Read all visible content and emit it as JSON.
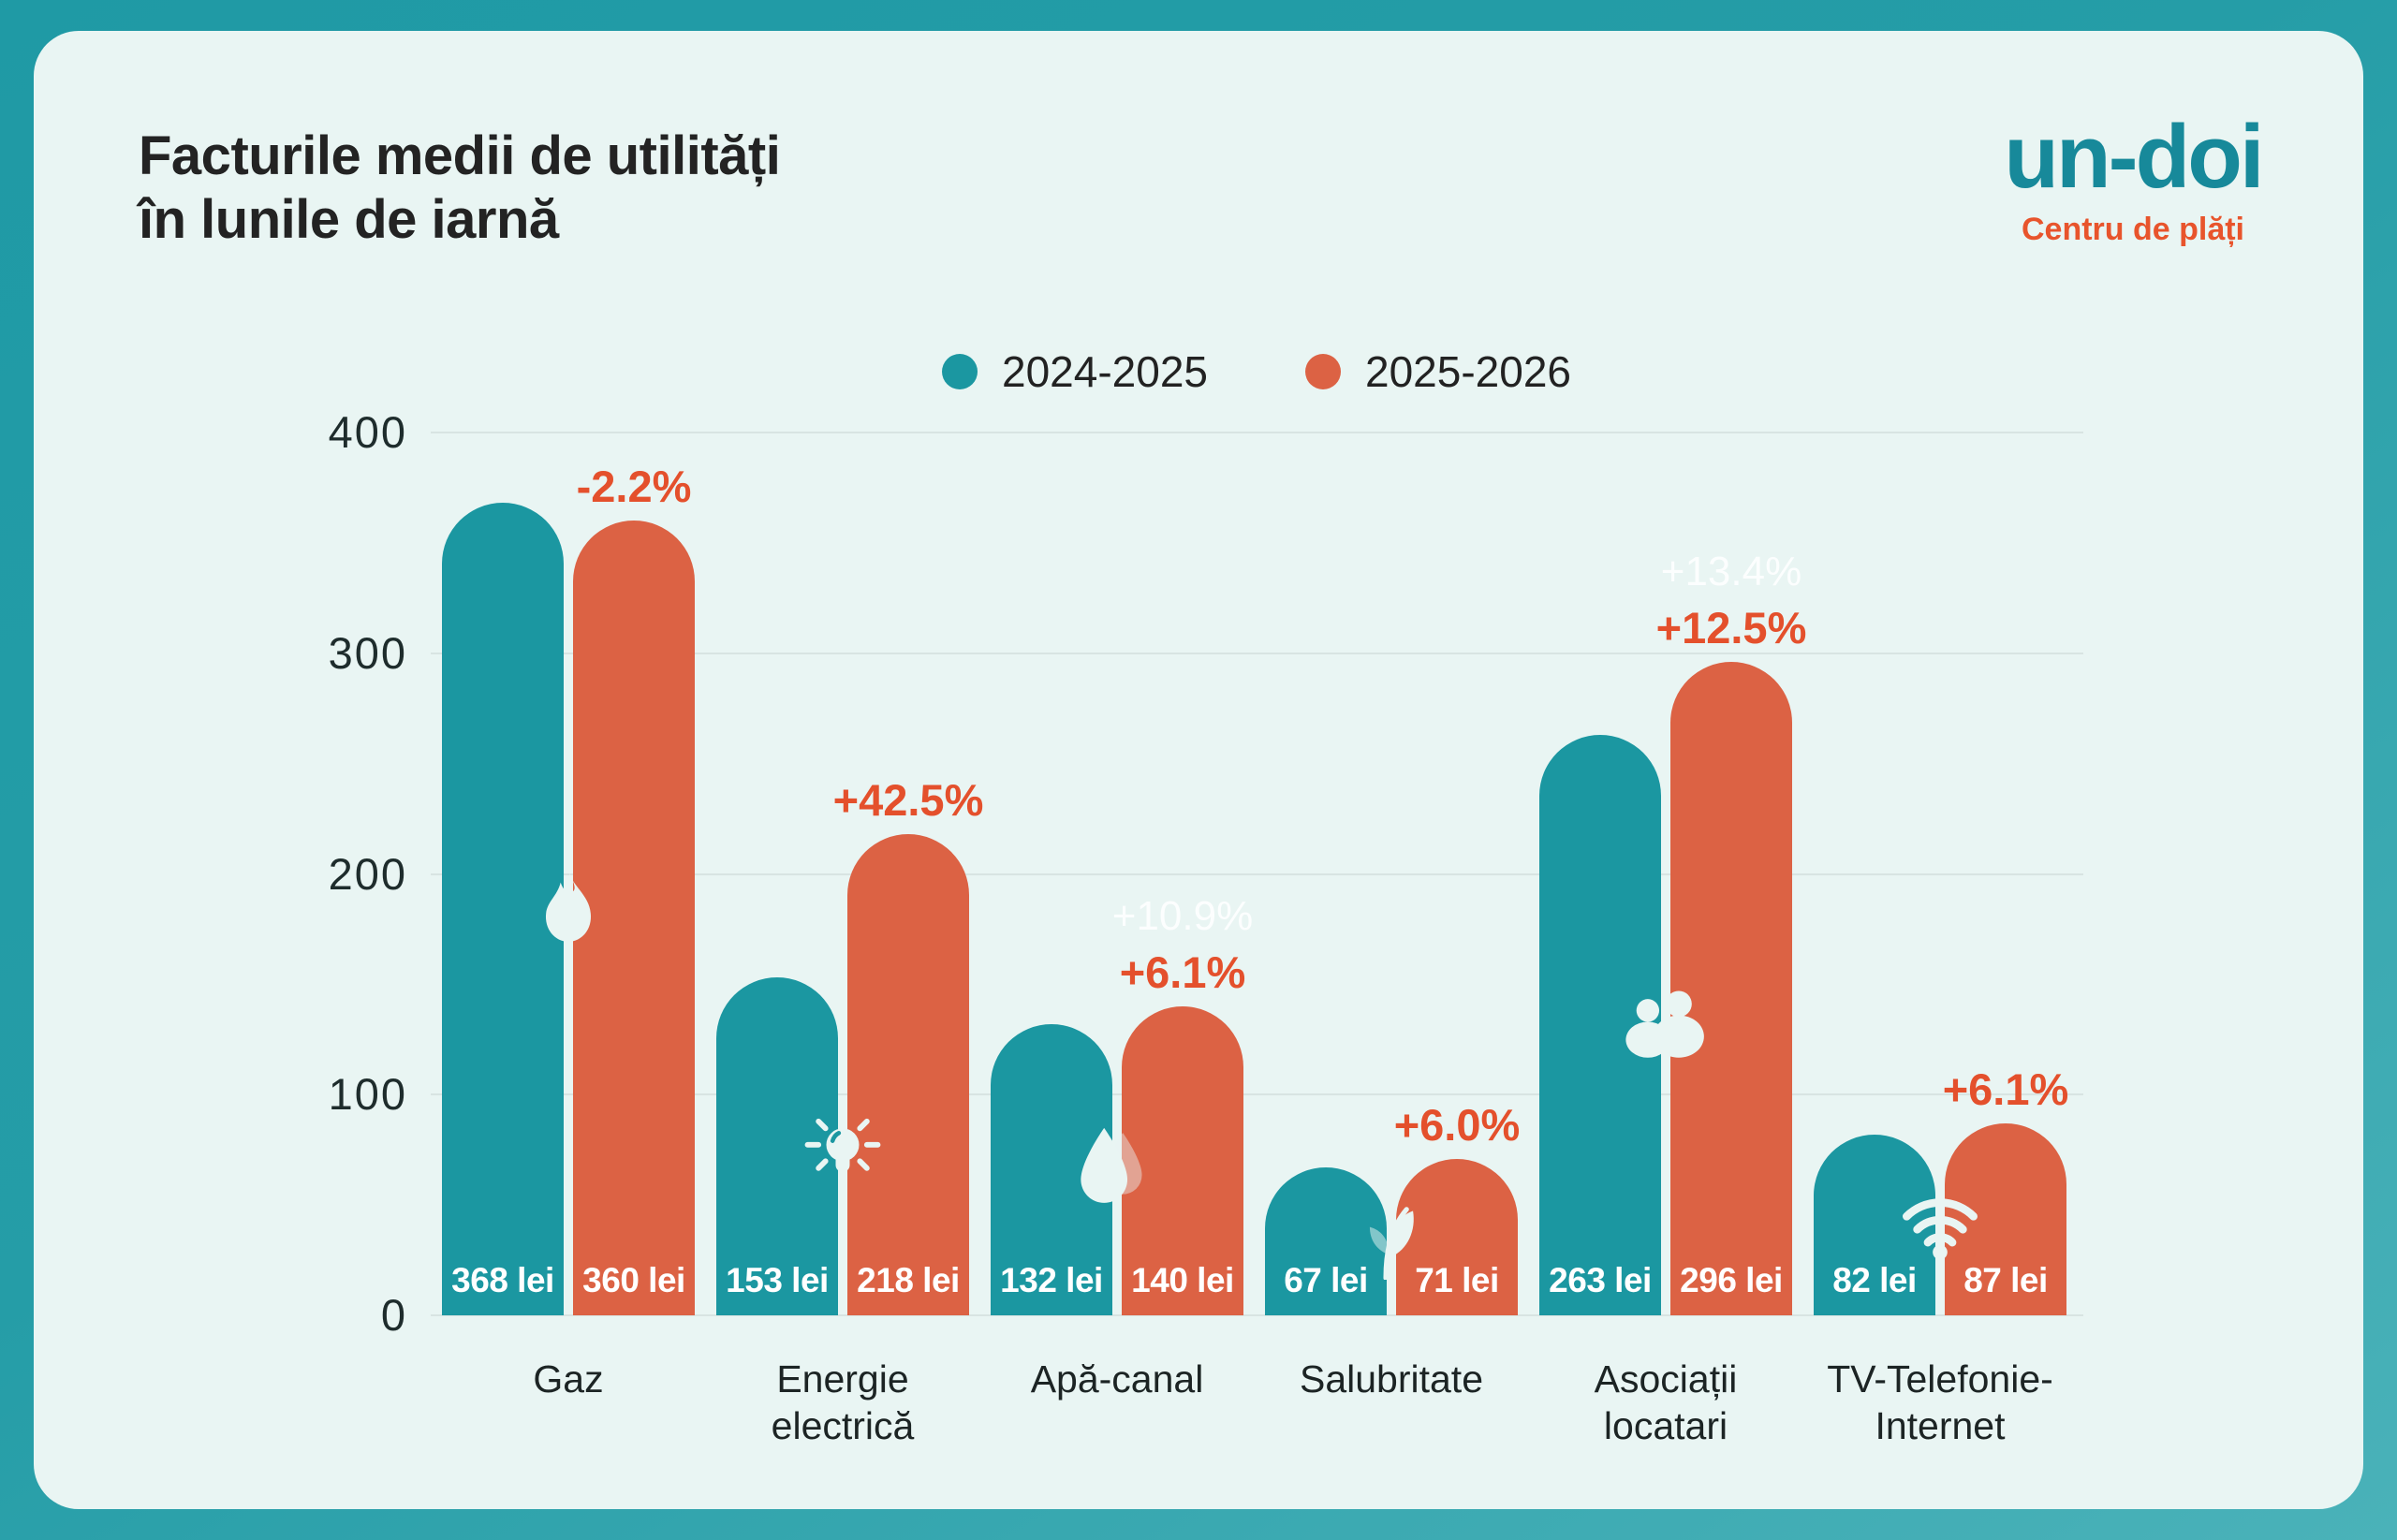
{
  "header": {
    "title_line1": "Facturile medii de utilități",
    "title_line2": "în lunile de iarnă",
    "brand": {
      "logo": "un-doi",
      "tagline": "Centru de plăți"
    }
  },
  "legend": {
    "items": [
      {
        "label": "2024-2025",
        "color": "#1B97A1"
      },
      {
        "label": "2025-2026",
        "color": "#DC6244"
      }
    ]
  },
  "chart_data": {
    "type": "bar",
    "title": "Facturile medii de utilități în lunile de iarnă",
    "categories": [
      "Gaz",
      "Energie electrică",
      "Apă-canal",
      "Salubritate",
      "Asociații locatari",
      "TV-Telefonie-Internet"
    ],
    "category_lines": [
      [
        "Gaz"
      ],
      [
        "Energie",
        "electrică"
      ],
      [
        "Apă-canal"
      ],
      [
        "Salubritate"
      ],
      [
        "Asociații",
        "locatari"
      ],
      [
        "TV-Telefonie-",
        "Internet"
      ]
    ],
    "series": [
      {
        "name": "2024-2025",
        "color": "#1B97A1",
        "values": [
          368,
          153,
          132,
          67,
          263,
          82
        ]
      },
      {
        "name": "2025-2026",
        "color": "#DC6244",
        "values": [
          360,
          218,
          140,
          71,
          296,
          87
        ]
      }
    ],
    "unit": "lei",
    "change_labels": [
      "-2.2%",
      "+42.5%",
      "+6.1%",
      "+6.0%",
      "+12.5%",
      "+6.1%"
    ],
    "ghost_change_labels": [
      "",
      "",
      "+10.9%",
      "",
      "+13.4%",
      ""
    ],
    "icons": [
      "flame-icon",
      "lightbulb-icon",
      "water-drop-icon",
      "leaf-icon",
      "residents-icon",
      "wifi-icon"
    ],
    "ylim": [
      0,
      400
    ],
    "yticks": [
      0,
      100,
      200,
      300,
      400
    ],
    "grid": true,
    "legend_position": "top"
  },
  "colors": {
    "teal_series": "#1B97A1",
    "orange_series": "#DC6244",
    "accent_orange_text": "#E4502C",
    "panel_background": "#E9F5F3",
    "frame_teal": "#259DA7",
    "gridline": "#D8E4E2",
    "title_text": "#232323",
    "logo_teal": "#17899A",
    "logo_orange": "#E8542C"
  }
}
